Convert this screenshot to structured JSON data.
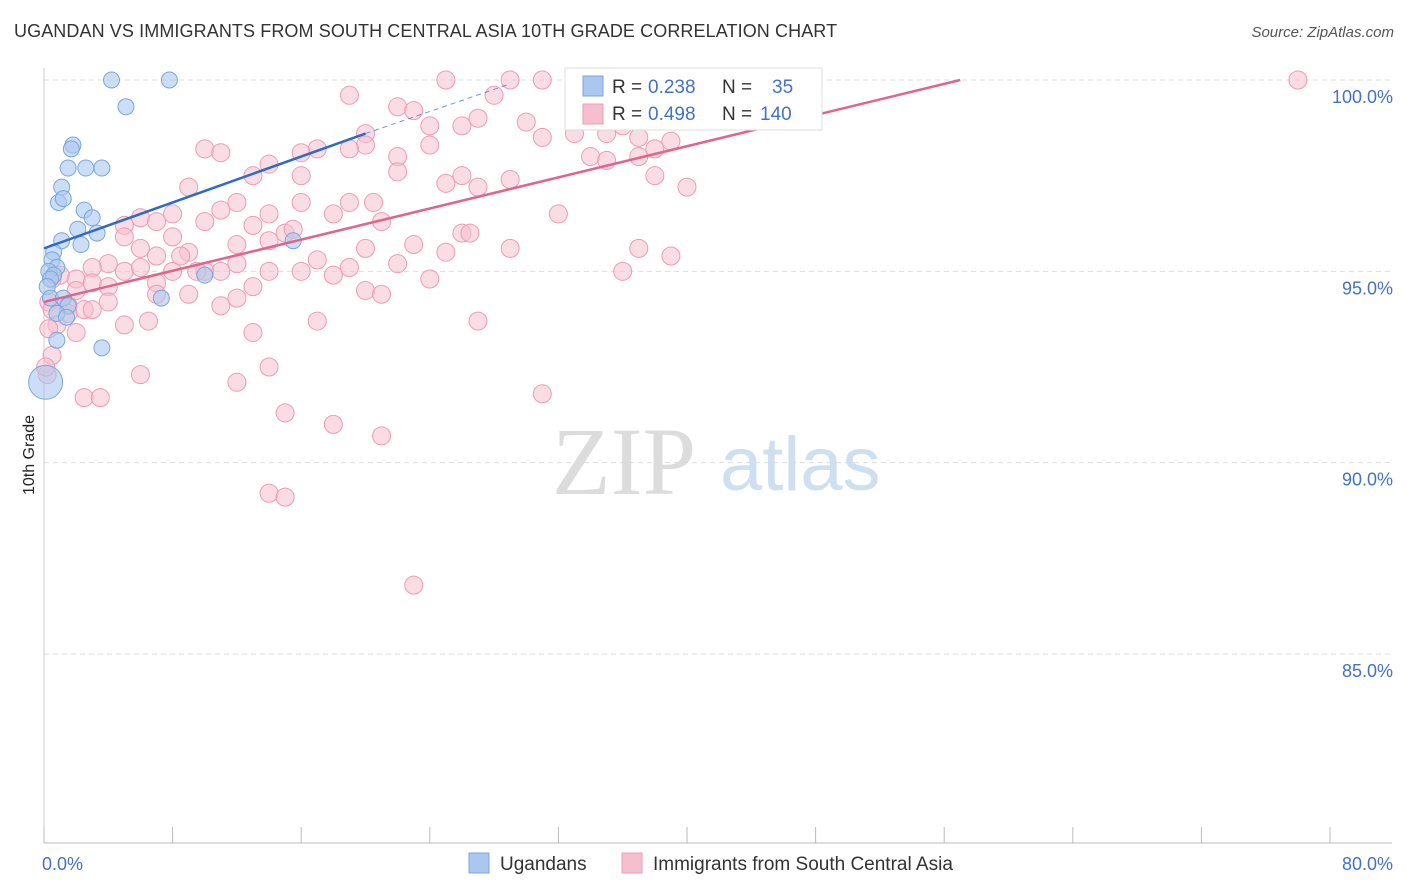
{
  "title": "UGANDAN VS IMMIGRANTS FROM SOUTH CENTRAL ASIA 10TH GRADE CORRELATION CHART",
  "source": "Source: ZipAtlas.com",
  "watermark": {
    "zip": "ZIP",
    "atlas": "atlas"
  },
  "colors": {
    "blue_fill": "#aac8ee",
    "blue_stroke": "#7aa6dd",
    "blue_line": "#2e6bc9",
    "pink_fill": "#f6bfd0",
    "pink_stroke": "#ee9bb5",
    "pink_line": "#e0648e",
    "tick_text": "#4472c4",
    "grid": "#dddddd"
  },
  "legend": {
    "rows": [
      {
        "r_label": "R =",
        "r_value": "0.238",
        "n_label": "N =",
        "n_value": "35"
      },
      {
        "r_label": "R =",
        "r_value": "0.498",
        "n_label": "N =",
        "n_value": "140"
      }
    ]
  },
  "chart_data": {
    "type": "scatter",
    "title": "UGANDAN VS IMMIGRANTS FROM SOUTH CENTRAL ASIA 10TH GRADE CORRELATION CHART",
    "xlabel": "",
    "ylabel": "10th Grade",
    "xlim": [
      0,
      80
    ],
    "ylim": [
      80.5,
      100.8
    ],
    "x_tick_labels": [
      "0.0%",
      "80.0%"
    ],
    "y_ticks": [
      {
        "value": 85,
        "label": "85.0%"
      },
      {
        "value": 90,
        "label": "90.0%"
      },
      {
        "value": 95,
        "label": "95.0%"
      },
      {
        "value": 100,
        "label": "100.0%"
      }
    ],
    "grid": true,
    "series": [
      {
        "name": "Ugandans",
        "color": "blue",
        "r": 0.238,
        "n": 35,
        "trend": {
          "x": [
            0,
            20
          ],
          "y": [
            95.6,
            98.6
          ]
        },
        "trend_ext": {
          "x": [
            20,
            29
          ],
          "y": [
            98.6,
            99.9
          ]
        },
        "points": [
          [
            4.2,
            100.0
          ],
          [
            7.8,
            100.0
          ],
          [
            5.1,
            99.3
          ],
          [
            1.8,
            98.3
          ],
          [
            1.7,
            98.2
          ],
          [
            1.5,
            97.7
          ],
          [
            2.6,
            97.7
          ],
          [
            3.6,
            97.7
          ],
          [
            1.1,
            97.2
          ],
          [
            0.9,
            96.8
          ],
          [
            1.2,
            96.9
          ],
          [
            2.5,
            96.6
          ],
          [
            3.0,
            96.4
          ],
          [
            2.1,
            96.1
          ],
          [
            3.3,
            96.0
          ],
          [
            1.1,
            95.8
          ],
          [
            2.3,
            95.7
          ],
          [
            0.6,
            95.5
          ],
          [
            0.5,
            95.3
          ],
          [
            0.8,
            95.1
          ],
          [
            0.3,
            95.0
          ],
          [
            0.6,
            94.9
          ],
          [
            0.4,
            94.8
          ],
          [
            0.2,
            94.6
          ],
          [
            0.4,
            94.3
          ],
          [
            1.2,
            94.3
          ],
          [
            1.5,
            94.1
          ],
          [
            7.3,
            94.3
          ],
          [
            10.0,
            94.9
          ],
          [
            15.5,
            95.8
          ],
          [
            0.8,
            93.9
          ],
          [
            1.4,
            93.8
          ],
          [
            0.8,
            93.2
          ],
          [
            3.6,
            93.0
          ],
          [
            0.1,
            92.1
          ]
        ]
      },
      {
        "name": "Immigrants from South Central Asia",
        "color": "pink",
        "r": 0.498,
        "n": 140,
        "trend": {
          "x": [
            0,
            57
          ],
          "y": [
            94.2,
            100.0
          ]
        },
        "points": [
          [
            25,
            100.0
          ],
          [
            29,
            100.0
          ],
          [
            31,
            100.0
          ],
          [
            33,
            100.0
          ],
          [
            39,
            100.0
          ],
          [
            41,
            100.0
          ],
          [
            43,
            100.0
          ],
          [
            78,
            100.0
          ],
          [
            19,
            99.6
          ],
          [
            28,
            99.6
          ],
          [
            22,
            99.3
          ],
          [
            24,
            98.8
          ],
          [
            27,
            99.0
          ],
          [
            23,
            99.2
          ],
          [
            30,
            98.9
          ],
          [
            20,
            98.6
          ],
          [
            26,
            98.8
          ],
          [
            36,
            98.8
          ],
          [
            33,
            98.6
          ],
          [
            35,
            98.6
          ],
          [
            31,
            98.5
          ],
          [
            37,
            98.5
          ],
          [
            39,
            98.4
          ],
          [
            20,
            98.3
          ],
          [
            24,
            98.3
          ],
          [
            19,
            98.2
          ],
          [
            17,
            98.2
          ],
          [
            16,
            98.1
          ],
          [
            10,
            98.2
          ],
          [
            11,
            98.1
          ],
          [
            22,
            98.0
          ],
          [
            34,
            98.0
          ],
          [
            37,
            98.0
          ],
          [
            14,
            97.8
          ],
          [
            22,
            97.6
          ],
          [
            26,
            97.5
          ],
          [
            38,
            97.5
          ],
          [
            29,
            97.4
          ],
          [
            40,
            97.2
          ],
          [
            16,
            97.5
          ],
          [
            13,
            97.5
          ],
          [
            9,
            97.2
          ],
          [
            25,
            97.3
          ],
          [
            27,
            97.2
          ],
          [
            19,
            96.8
          ],
          [
            16,
            96.8
          ],
          [
            14,
            96.5
          ],
          [
            12,
            96.8
          ],
          [
            11,
            96.6
          ],
          [
            8,
            96.5
          ],
          [
            10,
            96.3
          ],
          [
            13,
            96.2
          ],
          [
            15,
            96.0
          ],
          [
            18,
            96.5
          ],
          [
            21,
            96.3
          ],
          [
            26,
            96.0
          ],
          [
            6,
            96.4
          ],
          [
            7,
            96.3
          ],
          [
            5,
            96.2
          ],
          [
            8,
            95.9
          ],
          [
            5,
            95.9
          ],
          [
            12,
            95.7
          ],
          [
            14,
            95.8
          ],
          [
            20,
            95.6
          ],
          [
            23,
            95.7
          ],
          [
            25,
            95.5
          ],
          [
            29,
            95.6
          ],
          [
            37,
            95.6
          ],
          [
            39,
            95.4
          ],
          [
            6,
            95.6
          ],
          [
            4,
            95.2
          ],
          [
            7,
            95.4
          ],
          [
            9,
            95.5
          ],
          [
            11,
            95.0
          ],
          [
            17,
            95.3
          ],
          [
            19,
            95.1
          ],
          [
            22,
            95.2
          ],
          [
            3,
            95.1
          ],
          [
            5,
            95.0
          ],
          [
            6,
            95.1
          ],
          [
            8,
            95.0
          ],
          [
            10,
            95.0
          ],
          [
            12,
            95.2
          ],
          [
            14,
            95.0
          ],
          [
            16,
            95.0
          ],
          [
            18,
            94.9
          ],
          [
            24,
            94.8
          ],
          [
            36,
            95.0
          ],
          [
            2,
            94.8
          ],
          [
            3,
            94.7
          ],
          [
            1,
            94.9
          ],
          [
            2,
            94.5
          ],
          [
            0.5,
            94.8
          ],
          [
            4,
            94.6
          ],
          [
            7,
            94.7
          ],
          [
            9,
            94.4
          ],
          [
            13,
            94.6
          ],
          [
            20,
            94.5
          ],
          [
            21,
            94.4
          ],
          [
            0.3,
            94.2
          ],
          [
            1.5,
            94.1
          ],
          [
            2.5,
            94.0
          ],
          [
            4,
            94.2
          ],
          [
            7,
            94.4
          ],
          [
            11,
            94.1
          ],
          [
            12,
            94.3
          ],
          [
            0.5,
            94.0
          ],
          [
            1.5,
            93.9
          ],
          [
            3,
            94.0
          ],
          [
            5,
            93.6
          ],
          [
            6.5,
            93.7
          ],
          [
            17,
            93.7
          ],
          [
            27,
            93.7
          ],
          [
            0.8,
            93.6
          ],
          [
            2,
            93.4
          ],
          [
            0.3,
            93.5
          ],
          [
            13,
            93.4
          ],
          [
            14,
            92.5
          ],
          [
            0.5,
            92.8
          ],
          [
            0.2,
            92.3
          ],
          [
            6,
            92.3
          ],
          [
            12,
            92.1
          ],
          [
            31,
            91.8
          ],
          [
            2.5,
            91.7
          ],
          [
            3.5,
            91.7
          ],
          [
            15,
            91.3
          ],
          [
            18,
            91.0
          ],
          [
            21,
            90.7
          ],
          [
            14,
            89.2
          ],
          [
            15,
            89.1
          ],
          [
            23,
            86.8
          ],
          [
            0.1,
            92.5
          ],
          [
            8.5,
            95.4
          ],
          [
            9.5,
            95.0
          ],
          [
            15.5,
            96.1
          ],
          [
            20.5,
            96.8
          ],
          [
            26.5,
            96.0
          ],
          [
            32,
            96.5
          ],
          [
            35,
            97.9
          ],
          [
            38,
            98.2
          ]
        ]
      }
    ],
    "legend_bottom": [
      "Ugandans",
      "Immigrants from South Central Asia"
    ]
  }
}
